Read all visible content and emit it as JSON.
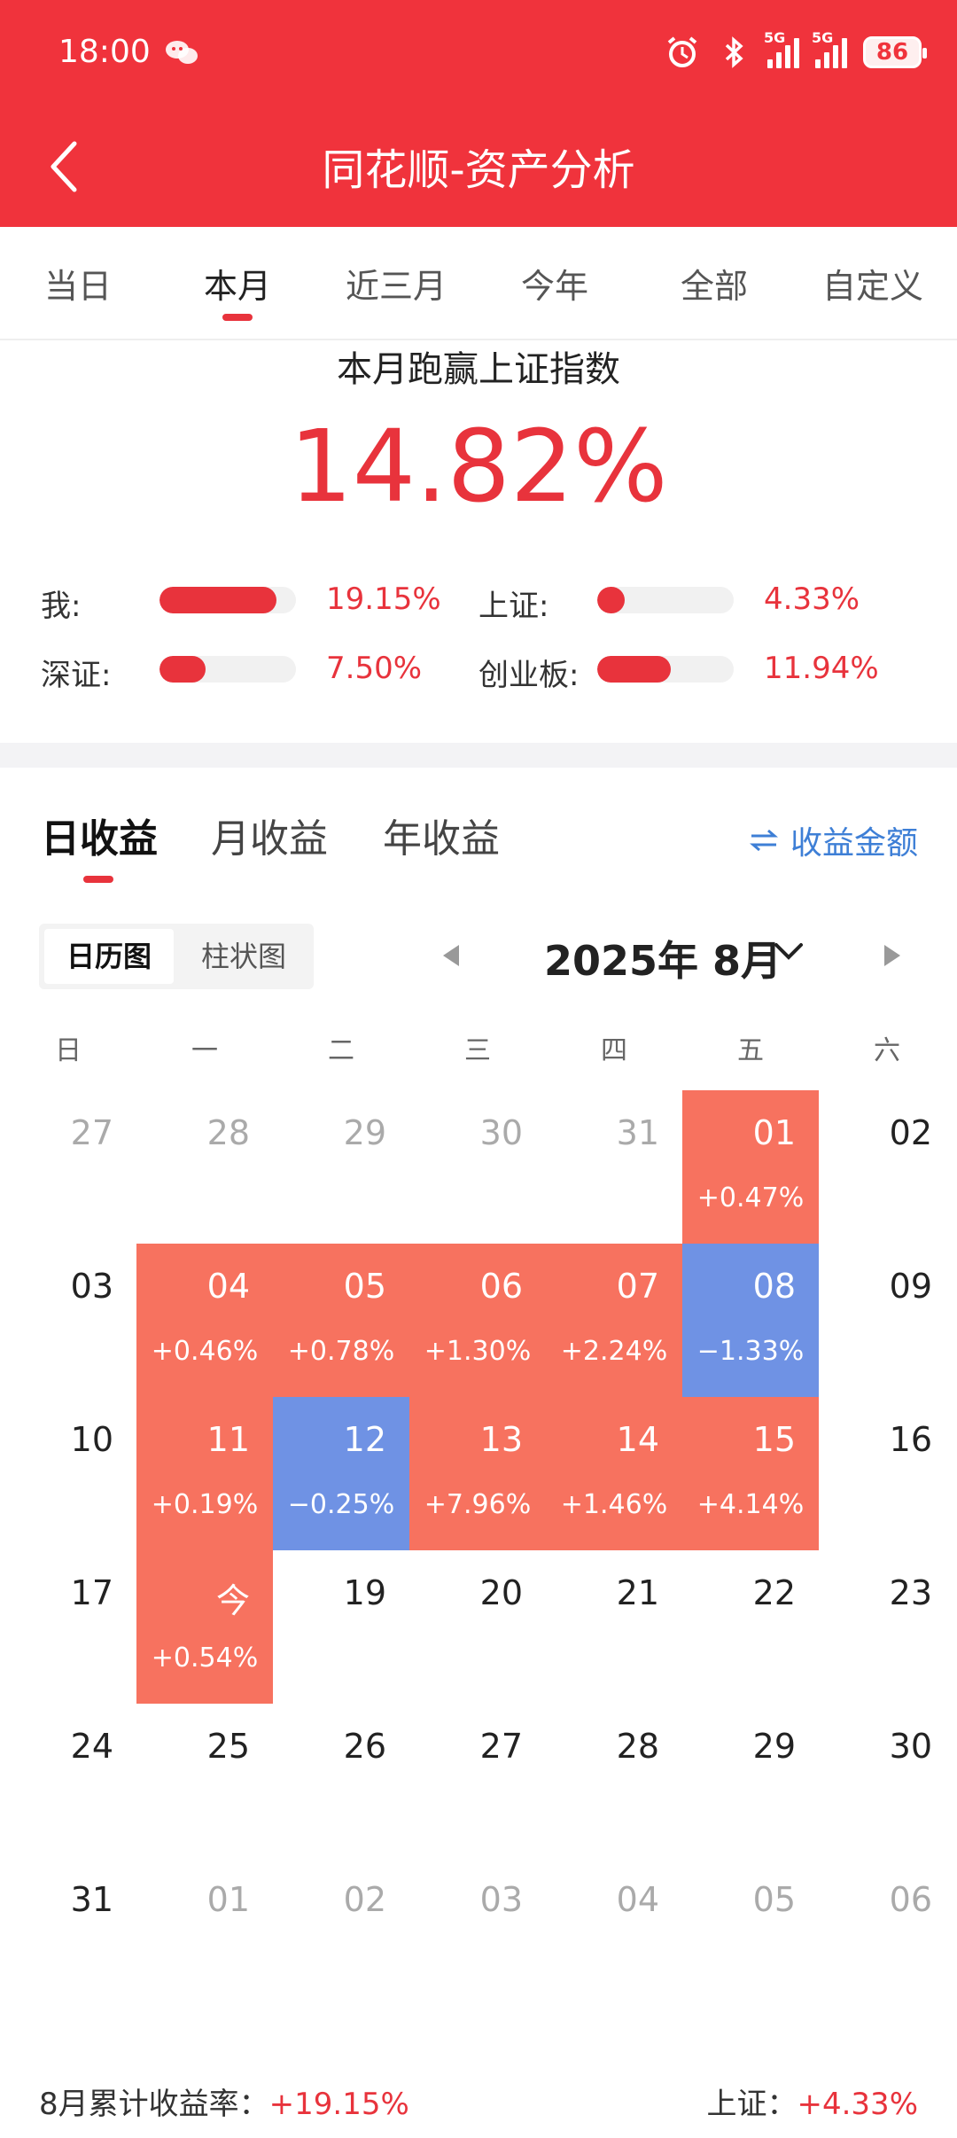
{
  "status": {
    "time": "18:00",
    "signal_tag": "5G",
    "battery": "86"
  },
  "header": {
    "title": "同花顺-资产分析"
  },
  "range_tabs": [
    {
      "label": "当日"
    },
    {
      "label": "本月"
    },
    {
      "label": "近三月"
    },
    {
      "label": "今年"
    },
    {
      "label": "全部"
    },
    {
      "label": "自定义"
    }
  ],
  "summary": {
    "beat_label": "本月跑赢上证指数",
    "beat_value": "14.82%",
    "comparisons": [
      {
        "label": "我:",
        "value": "19.15%",
        "level": 0.86
      },
      {
        "label": "上证:",
        "value": "4.33%",
        "level": 0.19
      },
      {
        "label": "深证:",
        "value": "7.50%",
        "level": 0.34
      },
      {
        "label": "创业板:",
        "value": "11.94%",
        "level": 0.54
      }
    ]
  },
  "income_tabs": [
    {
      "label": "日收益"
    },
    {
      "label": "月收益"
    },
    {
      "label": "年收益"
    }
  ],
  "amount_link": "收益金额",
  "view_toggle": {
    "calendar": "日历图",
    "bar": "柱状图"
  },
  "month": {
    "label": "2025年 8月"
  },
  "weekdays": [
    "日",
    "一",
    "二",
    "三",
    "四",
    "五",
    "六"
  ],
  "calendar": [
    [
      {
        "d": "27",
        "o": true
      },
      {
        "d": "28",
        "o": true
      },
      {
        "d": "29",
        "o": true
      },
      {
        "d": "30",
        "o": true
      },
      {
        "d": "31",
        "o": true
      },
      {
        "d": "01",
        "p": "+0.47%",
        "s": "up"
      },
      {
        "d": "02"
      }
    ],
    [
      {
        "d": "03"
      },
      {
        "d": "04",
        "p": "+0.46%",
        "s": "up"
      },
      {
        "d": "05",
        "p": "+0.78%",
        "s": "up"
      },
      {
        "d": "06",
        "p": "+1.30%",
        "s": "up"
      },
      {
        "d": "07",
        "p": "+2.24%",
        "s": "up"
      },
      {
        "d": "08",
        "p": "−1.33%",
        "s": "down"
      },
      {
        "d": "09"
      }
    ],
    [
      {
        "d": "10"
      },
      {
        "d": "11",
        "p": "+0.19%",
        "s": "up"
      },
      {
        "d": "12",
        "p": "−0.25%",
        "s": "down"
      },
      {
        "d": "13",
        "p": "+7.96%",
        "s": "up"
      },
      {
        "d": "14",
        "p": "+1.46%",
        "s": "up"
      },
      {
        "d": "15",
        "p": "+4.14%",
        "s": "up"
      },
      {
        "d": "16"
      }
    ],
    [
      {
        "d": "17"
      },
      {
        "d": "今",
        "p": "+0.54%",
        "s": "up"
      },
      {
        "d": "19"
      },
      {
        "d": "20"
      },
      {
        "d": "21"
      },
      {
        "d": "22"
      },
      {
        "d": "23"
      }
    ],
    [
      {
        "d": "24"
      },
      {
        "d": "25"
      },
      {
        "d": "26"
      },
      {
        "d": "27"
      },
      {
        "d": "28"
      },
      {
        "d": "29"
      },
      {
        "d": "30"
      }
    ],
    [
      {
        "d": "31"
      },
      {
        "d": "01",
        "o": true
      },
      {
        "d": "02",
        "o": true
      },
      {
        "d": "03",
        "o": true
      },
      {
        "d": "04",
        "o": true
      },
      {
        "d": "05",
        "o": true
      },
      {
        "d": "06",
        "o": true
      }
    ]
  ],
  "footer": {
    "month_label": "8月累计收益率：",
    "month_value": "+19.15%",
    "index_label": "上证：",
    "index_value": "+4.33%"
  },
  "colors": {
    "header": "#f0333c",
    "up": "#f7725f",
    "down": "#6f92e4",
    "accent": "#e8333c",
    "link": "#3e7fd6"
  }
}
